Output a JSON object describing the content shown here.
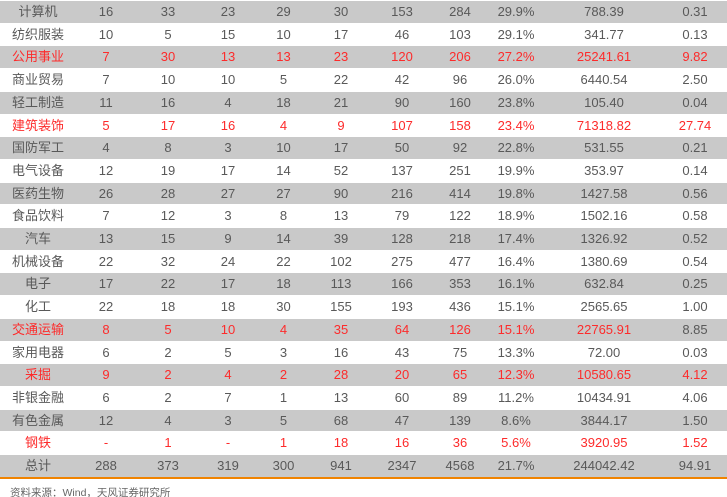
{
  "table": {
    "rows": [
      {
        "label": "计算机",
        "values": [
          "16",
          "33",
          "23",
          "29",
          "30",
          "153",
          "284",
          "29.9%",
          "788.39",
          "0.31"
        ],
        "highlight": false
      },
      {
        "label": "纺织服装",
        "values": [
          "10",
          "5",
          "15",
          "10",
          "17",
          "46",
          "103",
          "29.1%",
          "341.77",
          "0.13"
        ],
        "highlight": false
      },
      {
        "label": "公用事业",
        "values": [
          "7",
          "30",
          "13",
          "13",
          "23",
          "120",
          "206",
          "27.2%",
          "25241.61",
          "9.82"
        ],
        "highlight": true
      },
      {
        "label": "商业贸易",
        "values": [
          "7",
          "10",
          "10",
          "5",
          "22",
          "42",
          "96",
          "26.0%",
          "6440.54",
          "2.50"
        ],
        "highlight": false
      },
      {
        "label": "轻工制造",
        "values": [
          "11",
          "16",
          "4",
          "18",
          "21",
          "90",
          "160",
          "23.8%",
          "105.40",
          "0.04"
        ],
        "highlight": false
      },
      {
        "label": "建筑装饰",
        "values": [
          "5",
          "17",
          "16",
          "4",
          "9",
          "107",
          "158",
          "23.4%",
          "71318.82",
          "27.74"
        ],
        "highlight": true
      },
      {
        "label": "国防军工",
        "values": [
          "4",
          "8",
          "3",
          "10",
          "17",
          "50",
          "92",
          "22.8%",
          "531.55",
          "0.21"
        ],
        "highlight": false
      },
      {
        "label": "电气设备",
        "values": [
          "12",
          "19",
          "17",
          "14",
          "52",
          "137",
          "251",
          "19.9%",
          "353.97",
          "0.14"
        ],
        "highlight": false
      },
      {
        "label": "医药生物",
        "values": [
          "26",
          "28",
          "27",
          "27",
          "90",
          "216",
          "414",
          "19.8%",
          "1427.58",
          "0.56"
        ],
        "highlight": false
      },
      {
        "label": "食品饮料",
        "values": [
          "7",
          "12",
          "3",
          "8",
          "13",
          "79",
          "122",
          "18.9%",
          "1502.16",
          "0.58"
        ],
        "highlight": false
      },
      {
        "label": "汽车",
        "values": [
          "13",
          "15",
          "9",
          "14",
          "39",
          "128",
          "218",
          "17.4%",
          "1326.92",
          "0.52"
        ],
        "highlight": false
      },
      {
        "label": "机械设备",
        "values": [
          "22",
          "32",
          "24",
          "22",
          "102",
          "275",
          "477",
          "16.4%",
          "1380.69",
          "0.54"
        ],
        "highlight": false
      },
      {
        "label": "电子",
        "values": [
          "17",
          "22",
          "17",
          "18",
          "113",
          "166",
          "353",
          "16.1%",
          "632.84",
          "0.25"
        ],
        "highlight": false
      },
      {
        "label": "化工",
        "values": [
          "22",
          "18",
          "18",
          "30",
          "155",
          "193",
          "436",
          "15.1%",
          "2565.65",
          "1.00"
        ],
        "highlight": false
      },
      {
        "label": "交通运输",
        "values": [
          "8",
          "5",
          "10",
          "4",
          "35",
          "64",
          "126",
          "15.1%",
          "22765.91",
          "8.85"
        ],
        "highlight": true,
        "muted_value_indices": [
          9
        ]
      },
      {
        "label": "家用电器",
        "values": [
          "6",
          "2",
          "5",
          "3",
          "16",
          "43",
          "75",
          "13.3%",
          "72.00",
          "0.03"
        ],
        "highlight": false
      },
      {
        "label": "采掘",
        "values": [
          "9",
          "2",
          "4",
          "2",
          "28",
          "20",
          "65",
          "12.3%",
          "10580.65",
          "4.12"
        ],
        "highlight": true
      },
      {
        "label": "非银金融",
        "values": [
          "6",
          "2",
          "7",
          "1",
          "13",
          "60",
          "89",
          "11.2%",
          "10434.91",
          "4.06"
        ],
        "highlight": false
      },
      {
        "label": "有色金属",
        "values": [
          "12",
          "4",
          "3",
          "5",
          "68",
          "47",
          "139",
          "8.6%",
          "3844.17",
          "1.50"
        ],
        "highlight": false
      },
      {
        "label": "钢铁",
        "values": [
          "-",
          "1",
          "-",
          "1",
          "18",
          "16",
          "36",
          "5.6%",
          "3920.95",
          "1.52"
        ],
        "highlight": true
      },
      {
        "label": "总计",
        "values": [
          "288",
          "373",
          "319",
          "300",
          "941",
          "2347",
          "4568",
          "21.7%",
          "244042.42",
          "94.91"
        ],
        "highlight": false,
        "is_total": true
      }
    ]
  },
  "footer": {
    "source_text": "资料来源：Wind，天风证券研究所"
  },
  "colors": {
    "highlight_red": "#fd2b2b",
    "stripe_gray": "#c9c9c9",
    "text_gray": "#595959",
    "accent_orange": "#f08300"
  }
}
